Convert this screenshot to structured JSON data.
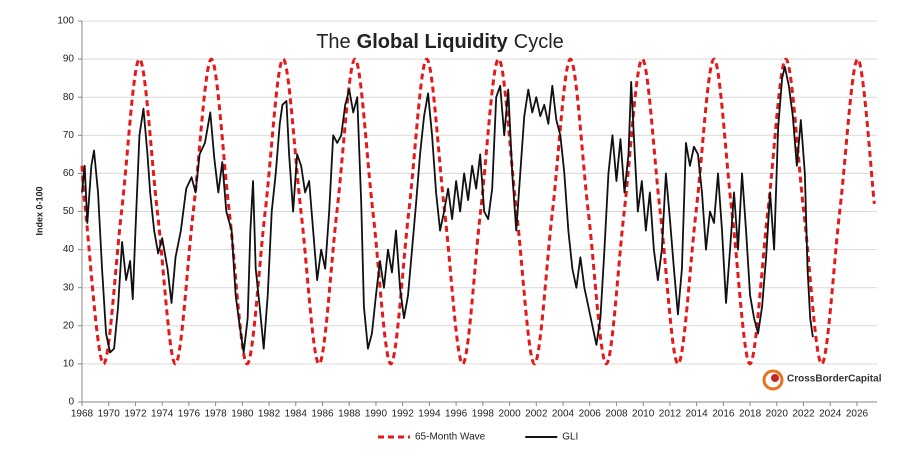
{
  "chart_data": {
    "type": "line",
    "title": [
      {
        "text": "The",
        "bold": false
      },
      {
        "text": "Global Liquidity",
        "bold": true
      },
      {
        "text": "Cycle",
        "bold": false
      }
    ],
    "y_label": "Index 0-100",
    "logo": "CrossBorderCapital",
    "xlim": [
      1968,
      2027.5
    ],
    "ylim": [
      0,
      100
    ],
    "xticks": [
      1968,
      1970,
      1972,
      1974,
      1976,
      1978,
      1980,
      1982,
      1984,
      1986,
      1988,
      1990,
      1992,
      1994,
      1996,
      1998,
      2000,
      2002,
      2004,
      2006,
      2008,
      2010,
      2012,
      2014,
      2016,
      2018,
      2020,
      2022,
      2024,
      2026
    ],
    "yticks": [
      0,
      10,
      20,
      30,
      40,
      50,
      60,
      70,
      80,
      90,
      100
    ],
    "grid": true,
    "legend": "bottom",
    "series": [
      {
        "name": "65-Month Wave",
        "color": "#e31a1c",
        "dashed": true,
        "smooth": true,
        "x": [
          1968,
          1968.27,
          1969.61,
          1970.96,
          1972.3,
          1973.64,
          1974.99,
          1976.33,
          1977.68,
          1979.02,
          1980.36,
          1981.71,
          1983.05,
          1984.39,
          1985.74,
          1987.08,
          1988.43,
          1989.77,
          1991.11,
          1992.46,
          1993.8,
          1995.14,
          1996.49,
          1997.83,
          1999.18,
          2000.52,
          2001.86,
          2003.21,
          2004.55,
          2005.89,
          2007.24,
          2008.58,
          2009.93,
          2011.27,
          2012.61,
          2013.96,
          2015.3,
          2016.64,
          2017.99,
          2019.33,
          2020.68,
          2022.02,
          2023.36,
          2024.71,
          2026.05,
          2027.3
        ],
        "values": [
          62,
          50,
          10,
          50,
          90,
          50,
          10,
          50,
          90,
          50,
          10,
          50,
          90,
          50,
          10,
          50,
          90,
          50,
          10,
          50,
          90,
          50,
          10,
          50,
          90,
          50,
          10,
          50,
          90,
          50,
          10,
          50,
          90,
          50,
          10,
          50,
          90,
          50,
          10,
          50,
          90,
          50,
          10,
          50,
          90,
          52
        ]
      },
      {
        "name": "GLI",
        "color": "#111111",
        "dashed": false,
        "smooth": false,
        "x": [
          1968.0,
          1968.2,
          1968.4,
          1968.7,
          1968.9,
          1969.2,
          1969.5,
          1969.8,
          1970.1,
          1970.4,
          1970.7,
          1971.0,
          1971.3,
          1971.6,
          1971.8,
          1972.0,
          1972.3,
          1972.6,
          1972.9,
          1973.1,
          1973.4,
          1973.7,
          1974.0,
          1974.4,
          1974.7,
          1975.0,
          1975.4,
          1975.8,
          1976.2,
          1976.5,
          1976.8,
          1977.2,
          1977.6,
          1977.9,
          1978.2,
          1978.5,
          1978.8,
          1979.2,
          1979.5,
          1979.8,
          1980.1,
          1980.4,
          1980.6,
          1980.8,
          1981.0,
          1981.3,
          1981.6,
          1981.9,
          1982.2,
          1982.5,
          1982.8,
          1983.0,
          1983.3,
          1983.5,
          1983.8,
          1984.1,
          1984.4,
          1984.7,
          1985.0,
          1985.3,
          1985.6,
          1985.9,
          1986.2,
          1986.5,
          1986.8,
          1987.1,
          1987.4,
          1987.7,
          1988.0,
          1988.3,
          1988.6,
          1988.9,
          1989.1,
          1989.4,
          1989.7,
          1990.0,
          1990.3,
          1990.6,
          1990.9,
          1991.2,
          1991.5,
          1991.8,
          1992.1,
          1992.4,
          1992.7,
          1993.0,
          1993.3,
          1993.6,
          1993.9,
          1994.2,
          1994.5,
          1994.8,
          1995.1,
          1995.4,
          1995.7,
          1996.0,
          1996.3,
          1996.6,
          1996.9,
          1997.2,
          1997.5,
          1997.8,
          1998.1,
          1998.4,
          1998.7,
          1999.0,
          1999.3,
          1999.6,
          1999.9,
          2000.2,
          2000.5,
          2000.8,
          2001.1,
          2001.4,
          2001.7,
          2002.0,
          2002.3,
          2002.6,
          2002.9,
          2003.2,
          2003.5,
          2003.8,
          2004.1,
          2004.4,
          2004.7,
          2005.0,
          2005.3,
          2005.6,
          2005.9,
          2006.2,
          2006.5,
          2006.8,
          2007.1,
          2007.4,
          2007.7,
          2008.0,
          2008.3,
          2008.6,
          2008.9,
          2009.1,
          2009.3,
          2009.6,
          2009.9,
          2010.2,
          2010.5,
          2010.8,
          2011.1,
          2011.4,
          2011.7,
          2012.0,
          2012.3,
          2012.6,
          2012.9,
          2013.2,
          2013.5,
          2013.8,
          2014.1,
          2014.4,
          2014.7,
          2015.0,
          2015.3,
          2015.6,
          2015.9,
          2016.2,
          2016.5,
          2016.8,
          2017.1,
          2017.4,
          2017.7,
          2018.0,
          2018.3,
          2018.6,
          2018.9,
          2019.2,
          2019.5,
          2019.8,
          2020.1,
          2020.4,
          2020.6,
          2020.9,
          2021.2,
          2021.5,
          2021.8,
          2022.1,
          2022.3,
          2022.5,
          2022.7
        ],
        "values": [
          55,
          62,
          47,
          62,
          66,
          55,
          35,
          18,
          13,
          14,
          25,
          42,
          32,
          37,
          27,
          45,
          70,
          77,
          65,
          55,
          45,
          39,
          43,
          35,
          26,
          38,
          45,
          56,
          59,
          55,
          65,
          68,
          76,
          64,
          55,
          63,
          50,
          45,
          28,
          20,
          13,
          22,
          45,
          58,
          35,
          25,
          14,
          28,
          50,
          60,
          73,
          78,
          79,
          65,
          50,
          65,
          62,
          55,
          58,
          45,
          32,
          40,
          35,
          50,
          70,
          68,
          70,
          78,
          82,
          76,
          80,
          52,
          25,
          14,
          18,
          28,
          37,
          30,
          40,
          34,
          45,
          30,
          22,
          28,
          40,
          52,
          65,
          75,
          81,
          70,
          55,
          45,
          50,
          56,
          48,
          58,
          50,
          60,
          53,
          62,
          56,
          65,
          50,
          48,
          56,
          80,
          83,
          70,
          82,
          60,
          45,
          60,
          75,
          82,
          76,
          80,
          75,
          78,
          73,
          83,
          74,
          70,
          60,
          45,
          35,
          30,
          38,
          30,
          25,
          20,
          15,
          22,
          40,
          60,
          70,
          58,
          69,
          55,
          65,
          84,
          70,
          50,
          58,
          45,
          55,
          40,
          32,
          40,
          60,
          48,
          35,
          23,
          35,
          68,
          62,
          67,
          65,
          55,
          40,
          50,
          47,
          60,
          45,
          26,
          40,
          55,
          40,
          60,
          45,
          28,
          22,
          18,
          25,
          38,
          55,
          40,
          72,
          85,
          88,
          83,
          75,
          62,
          74,
          60,
          35,
          22,
          17
        ]
      }
    ]
  }
}
